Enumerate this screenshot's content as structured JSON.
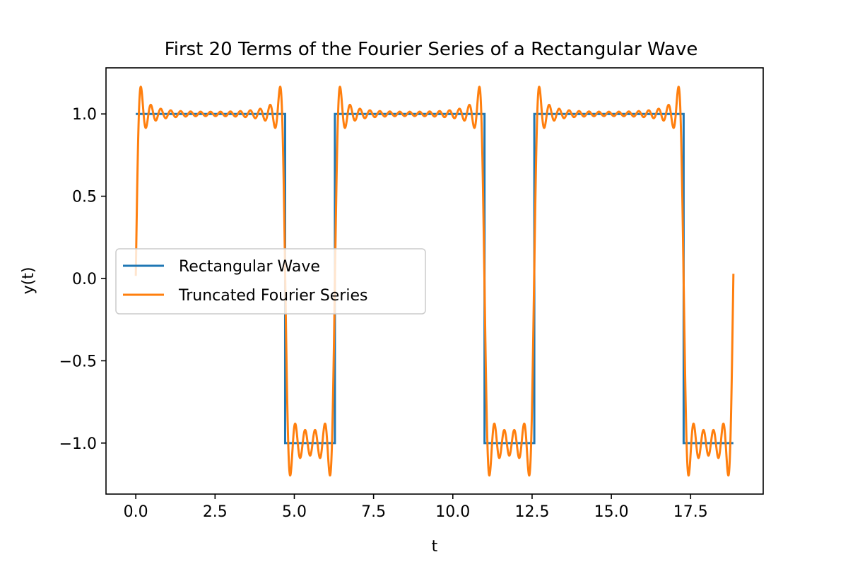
{
  "chart_data": {
    "type": "line",
    "title": "First 20 Terms of the Fourier Series of a Rectangular Wave",
    "xlabel": "t",
    "ylabel": "y(t)",
    "xlim": [
      -0.94,
      19.79
    ],
    "ylim": [
      -1.31,
      1.28
    ],
    "x_ticks": [
      0.0,
      2.5,
      5.0,
      7.5,
      10.0,
      12.5,
      15.0,
      17.5
    ],
    "x_tick_labels": [
      "0.0",
      "2.5",
      "5.0",
      "7.5",
      "10.0",
      "12.5",
      "15.0",
      "17.5"
    ],
    "y_ticks": [
      1.0,
      0.5,
      0.0,
      -0.5,
      -1.0
    ],
    "y_tick_labels": [
      "1.0",
      "0.5",
      "0.0",
      "−0.5",
      "−1.0"
    ],
    "grid": false,
    "legend": {
      "placement": "center-left"
    },
    "series": [
      {
        "name": "Rectangular Wave",
        "color": "#1f77b4",
        "points": [
          [
            0.0,
            1.0
          ],
          [
            4.71,
            1.0
          ],
          [
            4.71,
            -1.0
          ],
          [
            6.28,
            -1.0
          ],
          [
            6.28,
            1.0
          ],
          [
            11.0,
            1.0
          ],
          [
            11.0,
            -1.0
          ],
          [
            12.57,
            -1.0
          ],
          [
            12.57,
            1.0
          ],
          [
            17.28,
            1.0
          ],
          [
            17.28,
            -1.0
          ],
          [
            18.85,
            -1.0
          ]
        ]
      },
      {
        "name": "Truncated Fourier Series",
        "color": "#ff7f0e",
        "period": 6.283,
        "duty": 0.75,
        "terms": 20,
        "x_start": 0.0,
        "x_end": 18.85
      }
    ]
  }
}
